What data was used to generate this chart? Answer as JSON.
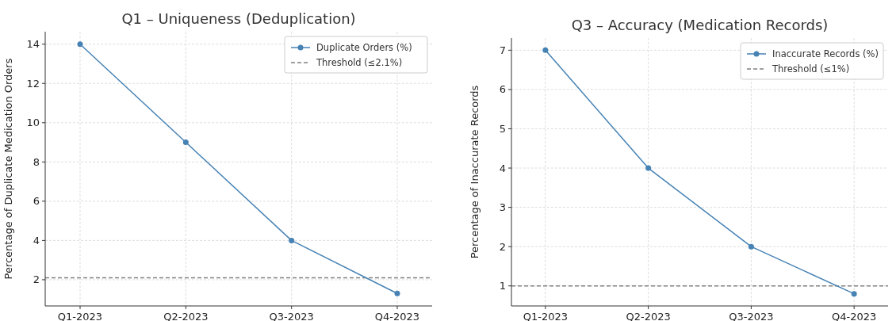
{
  "chart_data": [
    {
      "type": "line",
      "title": "Q1 – Uniqueness (Deduplication)",
      "ylabel": "Percentage of Duplicate Medication Orders",
      "categories": [
        "Q1-2023",
        "Q2-2023",
        "Q3-2023",
        "Q4-2023"
      ],
      "series": [
        {
          "name": "Duplicate Orders (%)",
          "color": "#4682b4",
          "values": [
            14,
            9,
            4,
            1.3
          ]
        }
      ],
      "ylim": [
        0.665,
        14.635
      ],
      "yticks": [
        2,
        4,
        6,
        8,
        10,
        12,
        14
      ],
      "grid": true,
      "legend": "top right",
      "marker": "circle",
      "line_style": "solid",
      "ref_lines": [
        {
          "axis": "y",
          "value": 2.1,
          "label": "Threshold (≤2.1%)",
          "color": "#808080",
          "line_style": "dashed"
        }
      ]
    },
    {
      "type": "line",
      "title": "Q3 – Accuracy (Medication Records)",
      "ylabel": "Percentage of Inaccurate Records",
      "categories": [
        "Q1-2023",
        "Q2-2023",
        "Q3-2023",
        "Q4-2023"
      ],
      "series": [
        {
          "name": "Inaccurate Records (%)",
          "color": "#4682b4",
          "values": [
            7,
            4,
            2,
            0.8
          ]
        }
      ],
      "ylim": [
        0.49,
        7.31
      ],
      "yticks": [
        1,
        2,
        3,
        4,
        5,
        6,
        7
      ],
      "grid": true,
      "legend": "top right",
      "marker": "circle",
      "line_style": "solid",
      "ref_lines": [
        {
          "axis": "y",
          "value": 1,
          "label": "Threshold (≤1%)",
          "color": "#808080",
          "line_style": "dashed"
        }
      ]
    }
  ]
}
